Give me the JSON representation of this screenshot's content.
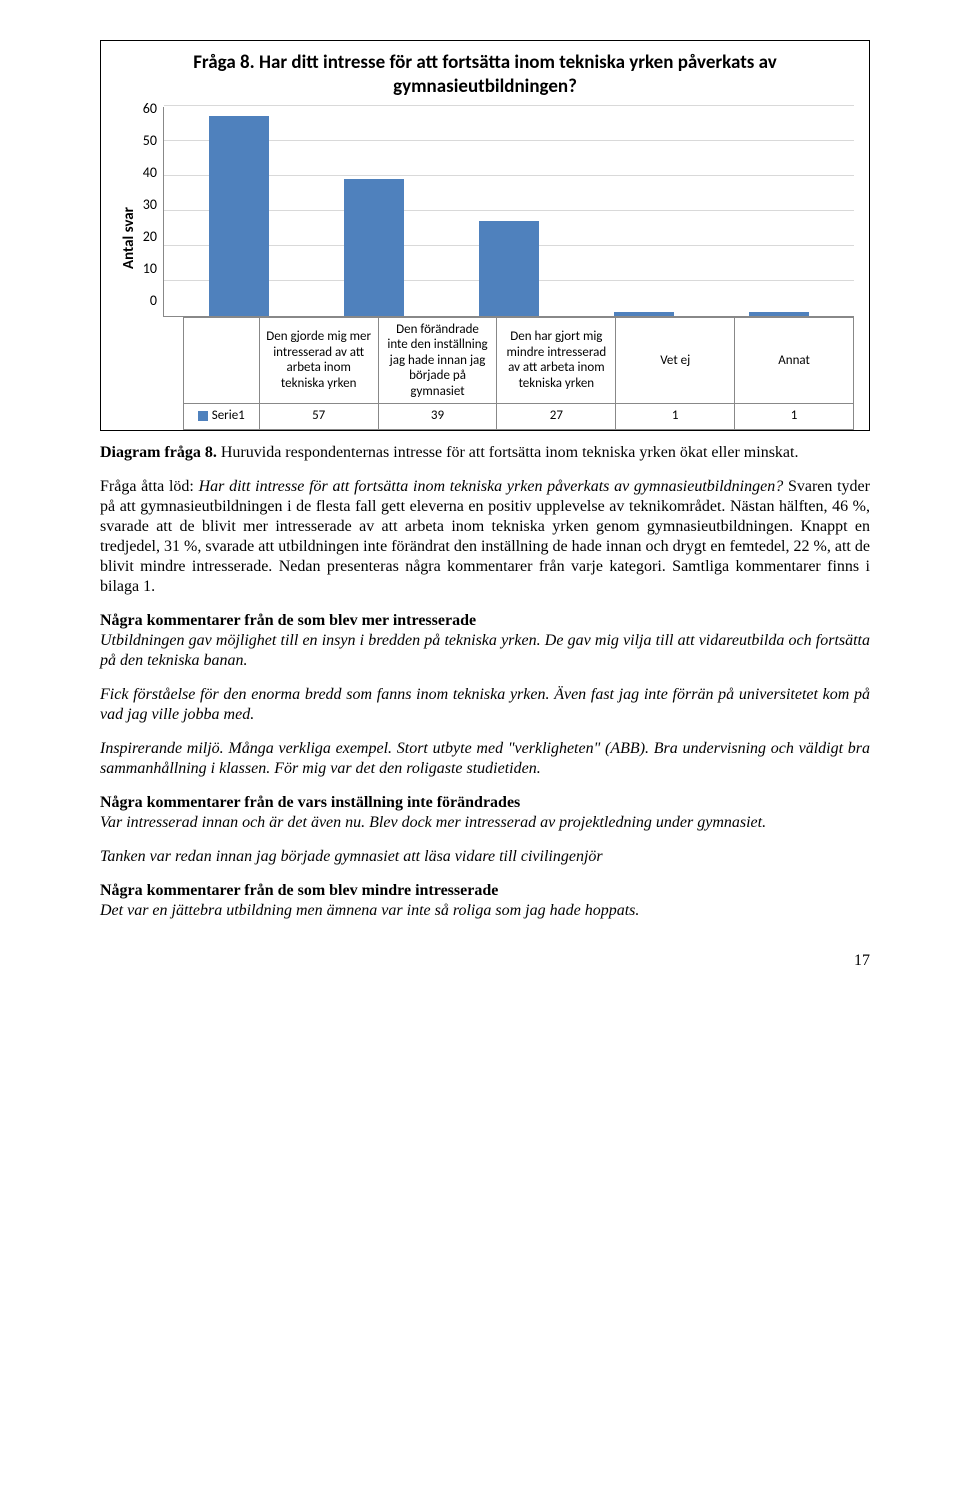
{
  "chart": {
    "type": "bar",
    "title": "Fråga 8. Har ditt intresse för att fortsätta inom tekniska yrken påverkats av gymnasieutbildningen?",
    "y_label": "Antal svar",
    "y_max": 60,
    "y_tick_step": 10,
    "y_ticks": [
      "60",
      "50",
      "40",
      "30",
      "20",
      "10",
      "0"
    ],
    "bar_color": "#4f81bd",
    "grid_color": "#d9d9d9",
    "axis_color": "#888888",
    "background_color": "#ffffff",
    "title_fontsize": 19,
    "label_fontsize": 15,
    "tick_fontsize": 14,
    "table_fontsize": 13,
    "legend_swatch_color": "#4f81bd",
    "series_name": "Serie1",
    "categories": [
      "Den gjorde mig mer intresserad av att arbeta inom tekniska yrken",
      "Den förändrade inte den inställning jag hade innan jag började på gymnasiet",
      "Den har gjort mig mindre intresserad av att arbeta inom tekniska yrken",
      "Vet ej",
      "Annat"
    ],
    "values": [
      57,
      39,
      27,
      1,
      1
    ]
  },
  "caption": {
    "lead": "Diagram fråga 8.",
    "rest": " Huruvida respondenternas intresse för att fortsätta inom tekniska yrken ökat eller minskat."
  },
  "para1": {
    "lead": "Fråga åtta löd: ",
    "q": "Har ditt intresse för att fortsätta inom tekniska yrken påverkats av gymnasieutbildningen?",
    "rest": " Svaren tyder på att gymnasieutbildningen i de flesta fall gett eleverna en positiv upplevelse av teknikområdet. Nästan hälften, 46 %, svarade att de blivit mer intresserade av att arbeta inom tekniska yrken genom gymnasieutbildningen. Knappt en tredjedel, 31 %, svarade att utbildningen inte förändrat den inställning de hade innan och drygt en femtedel, 22 %, att de blivit mindre intresserade. Nedan presenteras några kommentarer från varje kategori. Samtliga kommentarer finns i bilaga 1."
  },
  "sec1": {
    "head": "Några kommentarer från de som blev mer intresserade",
    "c1": "Utbildningen gav möjlighet till en insyn i bredden på tekniska yrken. De gav mig vilja till att vidareutbilda och fortsätta på den tekniska banan.",
    "c2": "Fick förståelse för den enorma bredd som fanns inom tekniska yrken. Även fast jag inte förrän på universitetet kom på vad jag ville jobba med.",
    "c3": "Inspirerande miljö. Många verkliga exempel. Stort utbyte med \"verkligheten\" (ABB). Bra undervisning och väldigt bra sammanhållning i klassen. För mig var det den roligaste studietiden."
  },
  "sec2": {
    "head": "Några kommentarer från de vars inställning inte förändrades",
    "c1": "Var intresserad innan och är det även nu. Blev dock mer intresserad av projektledning under gymnasiet.",
    "c2": "Tanken var redan innan jag började gymnasiet att läsa vidare till civilingenjör"
  },
  "sec3": {
    "head": "Några kommentarer från de som blev mindre intresserade",
    "c1": "Det var en jättebra utbildning men ämnena var inte så roliga som jag hade hoppats."
  },
  "page_number": "17"
}
